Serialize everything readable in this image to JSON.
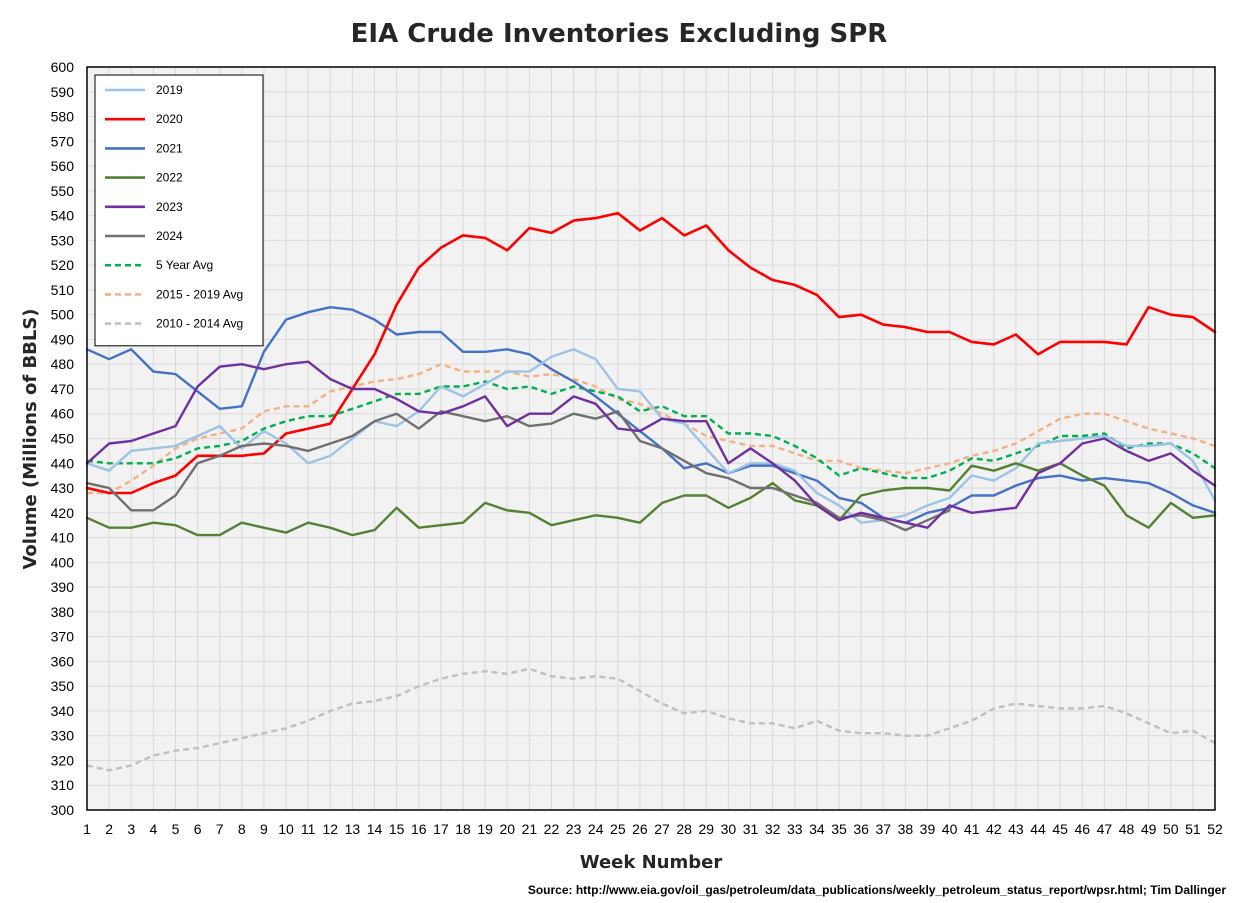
{
  "chart_data": {
    "type": "line",
    "title": "EIA Crude Inventories Excluding SPR",
    "xlabel": "Week Number",
    "ylabel": "Volume (Millions of BBLS)",
    "source": "Source: http://www.eia.gov/oil_gas/petroleum/data_publications/weekly_petroleum_status_report/wpsr.html; Tim Dallinger",
    "x": [
      1,
      2,
      3,
      4,
      5,
      6,
      7,
      8,
      9,
      10,
      11,
      12,
      13,
      14,
      15,
      16,
      17,
      18,
      19,
      20,
      21,
      22,
      23,
      24,
      25,
      26,
      27,
      28,
      29,
      30,
      31,
      32,
      33,
      34,
      35,
      36,
      37,
      38,
      39,
      40,
      41,
      42,
      43,
      44,
      45,
      46,
      47,
      48,
      49,
      50,
      51,
      52
    ],
    "xlim": [
      1,
      52
    ],
    "ylim": [
      300,
      600
    ],
    "ytick_step": 10,
    "grid": true,
    "legend_position": "top-left",
    "series": [
      {
        "name": "2019",
        "color": "#9DC3E6",
        "dash": "solid",
        "values": [
          440,
          437,
          445,
          446,
          447,
          451,
          455,
          446,
          453,
          448,
          440,
          443,
          450,
          457,
          455,
          461,
          471,
          467,
          472,
          477,
          477,
          483,
          486,
          482,
          470,
          469,
          458,
          456,
          446,
          436,
          440,
          440,
          437,
          428,
          423,
          416,
          417,
          419,
          423,
          426,
          435,
          433,
          438,
          448,
          449,
          450,
          451,
          447,
          447,
          448,
          441,
          425
        ]
      },
      {
        "name": "2020",
        "color": "#FF0000",
        "dash": "solid",
        "values": [
          430,
          428,
          428,
          432,
          435,
          443,
          443,
          443,
          444,
          452,
          454,
          456,
          470,
          484,
          504,
          519,
          527,
          532,
          531,
          526,
          535,
          533,
          538,
          539,
          541,
          534,
          539,
          532,
          536,
          526,
          519,
          514,
          512,
          508,
          499,
          500,
          496,
          495,
          493,
          493,
          489,
          488,
          492,
          484,
          489,
          489,
          489,
          488,
          503,
          500,
          499,
          493
        ]
      },
      {
        "name": "2021",
        "color": "#4472C4",
        "dash": "solid",
        "values": [
          486,
          482,
          486,
          477,
          476,
          469,
          462,
          463,
          485,
          498,
          501,
          503,
          502,
          498,
          492,
          493,
          493,
          485,
          485,
          486,
          484,
          478,
          473,
          467,
          460,
          453,
          446,
          438,
          440,
          436,
          439,
          439,
          436,
          433,
          426,
          424,
          418,
          416,
          420,
          422,
          427,
          427,
          431,
          434,
          435,
          433,
          434,
          433,
          432,
          428,
          423,
          420
        ]
      },
      {
        "name": "2022",
        "color": "#548235",
        "dash": "solid",
        "values": [
          418,
          414,
          414,
          416,
          415,
          411,
          411,
          416,
          414,
          412,
          416,
          414,
          411,
          413,
          422,
          414,
          415,
          416,
          424,
          421,
          420,
          415,
          417,
          419,
          418,
          416,
          424,
          427,
          427,
          422,
          426,
          432,
          425,
          423,
          417,
          427,
          429,
          430,
          430,
          429,
          439,
          437,
          440,
          437,
          440,
          435,
          431,
          419,
          414,
          424,
          418,
          419
        ]
      },
      {
        "name": "2023",
        "color": "#7030A0",
        "dash": "solid",
        "values": [
          440,
          448,
          449,
          452,
          455,
          471,
          479,
          480,
          478,
          480,
          481,
          474,
          470,
          470,
          466,
          461,
          460,
          463,
          467,
          455,
          460,
          460,
          467,
          464,
          454,
          453,
          458,
          457,
          457,
          440,
          446,
          440,
          433,
          423,
          417,
          420,
          418,
          416,
          414,
          423,
          420,
          421,
          422,
          436,
          440,
          448,
          450,
          445,
          441,
          444,
          437,
          431
        ]
      },
      {
        "name": "2024",
        "color": "#707070",
        "dash": "solid",
        "values": [
          432,
          430,
          421,
          421,
          427,
          440,
          443,
          447,
          448,
          447,
          445,
          448,
          451,
          457,
          460,
          454,
          461,
          459,
          457,
          459,
          455,
          456,
          460,
          458,
          461,
          449,
          446,
          441,
          436,
          434,
          430,
          430,
          427,
          424,
          418,
          419,
          417,
          413,
          417,
          421,
          null,
          null,
          null,
          null,
          null,
          null,
          null,
          null,
          null,
          null,
          null,
          null
        ]
      },
      {
        "name": "5 Year Avg",
        "color": "#00B050",
        "dash": "dashed",
        "values": [
          441,
          440,
          440,
          440,
          442,
          446,
          447,
          449,
          454,
          457,
          459,
          459,
          462,
          465,
          468,
          468,
          471,
          471,
          473,
          470,
          471,
          468,
          471,
          469,
          467,
          461,
          463,
          459,
          459,
          452,
          452,
          451,
          447,
          442,
          435,
          438,
          436,
          434,
          434,
          437,
          442,
          441,
          444,
          447,
          451,
          451,
          452,
          446,
          448,
          448,
          444,
          438
        ]
      },
      {
        "name": "2015 - 2019 Avg",
        "color": "#F4B183",
        "dash": "dashed",
        "values": [
          428,
          428,
          433,
          439,
          446,
          450,
          452,
          454,
          461,
          463,
          463,
          469,
          471,
          473,
          474,
          476,
          480,
          477,
          477,
          477,
          475,
          476,
          474,
          471,
          466,
          464,
          460,
          456,
          451,
          449,
          447,
          447,
          444,
          441,
          441,
          438,
          437,
          436,
          438,
          440,
          443,
          445,
          448,
          453,
          458,
          460,
          460,
          457,
          454,
          452,
          450,
          447
        ]
      },
      {
        "name": "2010 - 2014 Avg",
        "color": "#BFBFBF",
        "dash": "dashed",
        "values": [
          318,
          316,
          318,
          322,
          324,
          325,
          327,
          329,
          331,
          333,
          336,
          340,
          343,
          344,
          346,
          350,
          353,
          355,
          356,
          355,
          357,
          354,
          353,
          354,
          353,
          348,
          343,
          339,
          340,
          337,
          335,
          335,
          333,
          336,
          332,
          331,
          331,
          330,
          330,
          333,
          336,
          341,
          343,
          342,
          341,
          341,
          342,
          339,
          335,
          331,
          332,
          327
        ]
      }
    ]
  }
}
